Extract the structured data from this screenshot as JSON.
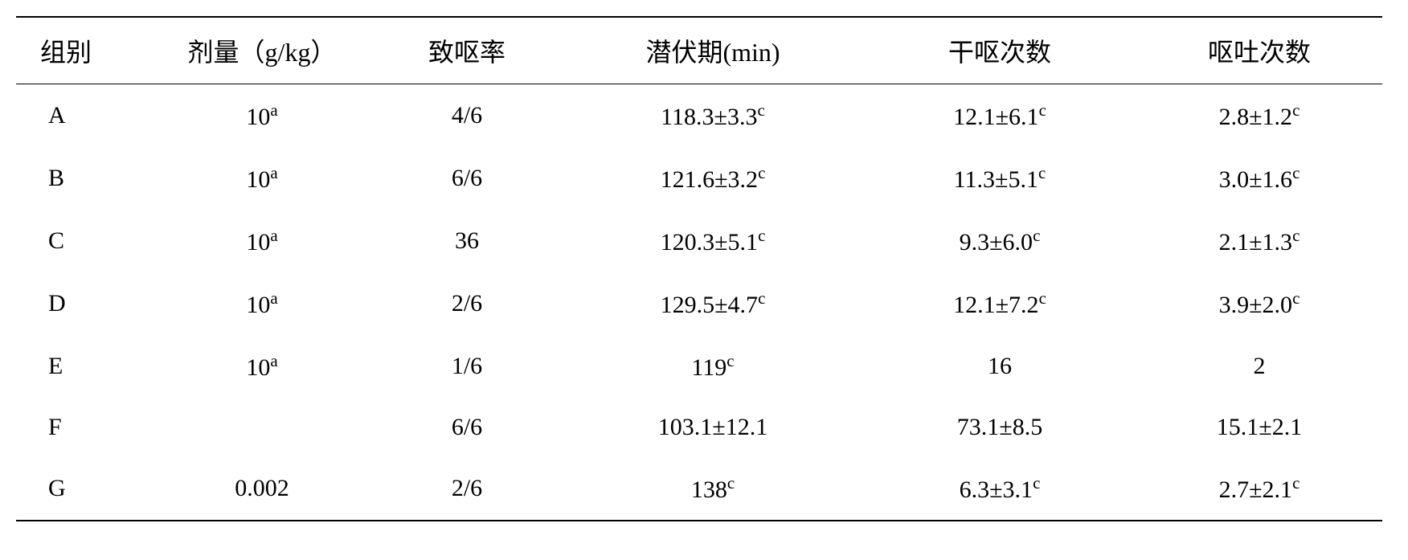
{
  "table": {
    "headers": {
      "group": "组别",
      "dose": "剂量（g/kg）",
      "rate": "致呕率",
      "latency": "潜伏期(min)",
      "retch": "干呕次数",
      "vomit": "呕吐次数"
    },
    "rows": [
      {
        "group": "A",
        "dose_value": "10",
        "dose_sup": "a",
        "rate": "4/6",
        "latency_value": "118.3±3.3",
        "latency_sup": "c",
        "retch_value": "12.1±6.1",
        "retch_sup": "c",
        "vomit_value": "2.8±1.2",
        "vomit_sup": "c"
      },
      {
        "group": "B",
        "dose_value": "10",
        "dose_sup": "a",
        "rate": "6/6",
        "latency_value": "121.6±3.2",
        "latency_sup": "c",
        "retch_value": "11.3±5.1",
        "retch_sup": "c",
        "vomit_value": "3.0±1.6",
        "vomit_sup": "c"
      },
      {
        "group": "C",
        "dose_value": "10",
        "dose_sup": "a",
        "rate": "36",
        "latency_value": "120.3±5.1",
        "latency_sup": "c",
        "retch_value": "9.3±6.0",
        "retch_sup": "c",
        "vomit_value": "2.1±1.3",
        "vomit_sup": "c"
      },
      {
        "group": "D",
        "dose_value": "10",
        "dose_sup": "a",
        "rate": "2/6",
        "latency_value": "129.5±4.7",
        "latency_sup": "c",
        "retch_value": "12.1±7.2",
        "retch_sup": "c",
        "vomit_value": "3.9±2.0",
        "vomit_sup": "c"
      },
      {
        "group": "E",
        "dose_value": "10",
        "dose_sup": "a",
        "rate": "1/6",
        "latency_value": "119",
        "latency_sup": "c",
        "retch_value": "16",
        "retch_sup": "",
        "vomit_value": "2",
        "vomit_sup": ""
      },
      {
        "group": "F",
        "dose_value": "",
        "dose_sup": "",
        "rate": "6/6",
        "latency_value": "103.1±12.1",
        "latency_sup": "",
        "retch_value": "73.1±8.5",
        "retch_sup": "",
        "vomit_value": "15.1±2.1",
        "vomit_sup": ""
      },
      {
        "group": "G",
        "dose_value": "0.002",
        "dose_sup": "",
        "rate": "2/6",
        "latency_value": "138",
        "latency_sup": "c",
        "retch_value": "6.3±3.1",
        "retch_sup": "c",
        "vomit_value": "2.7±2.1",
        "vomit_sup": "c"
      }
    ]
  }
}
